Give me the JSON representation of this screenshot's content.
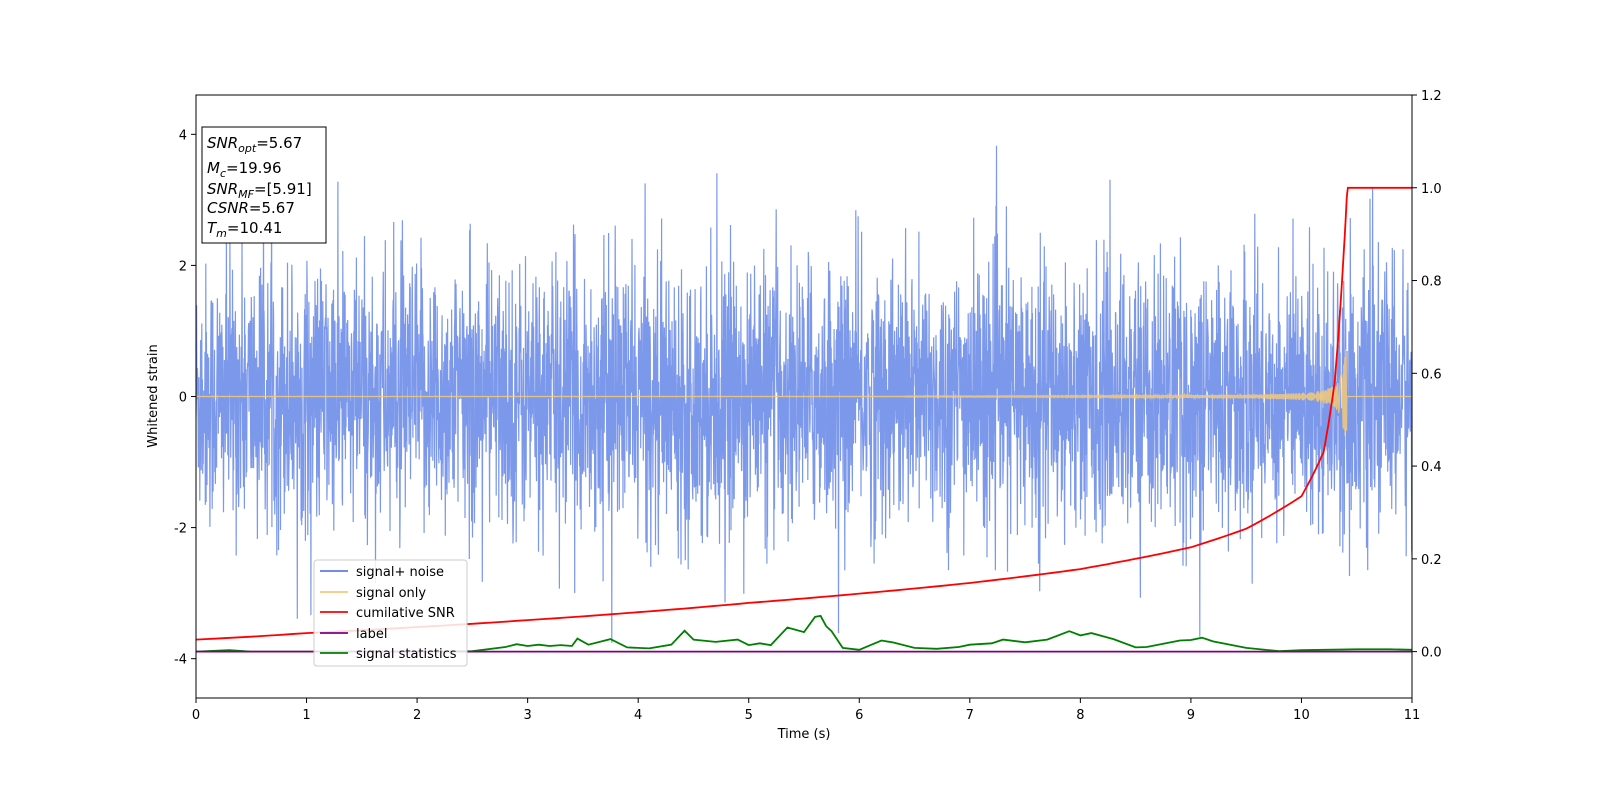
{
  "chart_data": {
    "type": "line",
    "xlabel": "Time (s)",
    "ylabel": "Whitened strain",
    "xlim": [
      0,
      11
    ],
    "ylim_left": [
      -4.6,
      4.6
    ],
    "ylim_right": [
      -0.1,
      1.2
    ],
    "x_ticks": [
      0,
      1,
      2,
      3,
      4,
      5,
      6,
      7,
      8,
      9,
      10,
      11
    ],
    "y_ticks_left": [
      -4,
      -2,
      0,
      2,
      4
    ],
    "y_ticks_right": [
      "0.0",
      "0.2",
      "0.4",
      "0.6",
      "0.8",
      "1.0",
      "1.2"
    ],
    "grid": false,
    "legend_position": "lower-left",
    "legend": [
      "signal+ noise",
      "signal only",
      "cumilative SNR",
      "label",
      "signal statistics"
    ],
    "colors": {
      "signal_noise": "#5b7ee5",
      "signal_only": "#f5c97a",
      "cumulative_snr": "#ff0000",
      "label": "#800080",
      "signal_statistics": "#008000"
    },
    "annotation": {
      "snr_opt": {
        "base": "SNR",
        "sub": "opt",
        "rest": "=5.67"
      },
      "mc": {
        "base": "M",
        "sub": "c",
        "rest": "=19.96"
      },
      "snr_mf": {
        "base": "SNR",
        "sub": "MF",
        "rest": "=[5.91]"
      },
      "csnr": {
        "base": "CSNR",
        "rest": "=5.67"
      },
      "tm": {
        "base": "T",
        "sub": "m",
        "rest": "=10.41"
      }
    },
    "series": [
      {
        "name": "signal+ noise",
        "axis": "left",
        "description_values": {
          "noise_std": 1.0,
          "envelope_max": 4.15,
          "envelope_min": -4.2
        }
      },
      {
        "name": "signal only",
        "axis": "left",
        "merger_time": 10.41,
        "peak_amplitude": 1.05
      },
      {
        "name": "cumilative SNR",
        "axis": "right",
        "x": [
          0,
          1,
          2,
          3,
          4,
          5,
          6,
          7,
          8,
          9,
          9.5,
          10,
          10.2,
          10.3,
          10.41,
          10.42,
          11
        ],
        "y": [
          0.026,
          0.04,
          0.053,
          0.068,
          0.085,
          0.105,
          0.125,
          0.148,
          0.178,
          0.225,
          0.265,
          0.335,
          0.43,
          0.58,
          0.98,
          1.0,
          1.0
        ]
      },
      {
        "name": "label",
        "axis": "right",
        "x": [
          0,
          11
        ],
        "y": [
          0,
          0
        ]
      },
      {
        "name": "signal statistics",
        "axis": "right",
        "x": [
          0,
          0.3,
          0.5,
          1,
          1.5,
          2,
          2.5,
          2.8,
          2.9,
          3.0,
          3.1,
          3.2,
          3.3,
          3.4,
          3.45,
          3.55,
          3.75,
          3.9,
          4.1,
          4.3,
          4.42,
          4.5,
          4.7,
          4.9,
          5.0,
          5.1,
          5.2,
          5.35,
          5.5,
          5.6,
          5.65,
          5.7,
          5.75,
          5.85,
          6.0,
          6.2,
          6.3,
          6.5,
          6.7,
          6.9,
          7.0,
          7.2,
          7.3,
          7.5,
          7.7,
          7.9,
          8.0,
          8.1,
          8.3,
          8.5,
          8.6,
          8.9,
          9.0,
          9.1,
          9.2,
          9.5,
          9.8,
          10.0,
          10.5,
          10.8,
          11
        ],
        "y": [
          0.0,
          0.003,
          0.0,
          0.0,
          0.0,
          0.0,
          0.001,
          0.01,
          0.016,
          0.012,
          0.015,
          0.012,
          0.014,
          0.012,
          0.028,
          0.015,
          0.027,
          0.009,
          0.007,
          0.015,
          0.045,
          0.026,
          0.021,
          0.026,
          0.014,
          0.018,
          0.014,
          0.052,
          0.042,
          0.075,
          0.077,
          0.055,
          0.044,
          0.008,
          0.004,
          0.024,
          0.02,
          0.008,
          0.006,
          0.01,
          0.015,
          0.018,
          0.026,
          0.02,
          0.026,
          0.044,
          0.035,
          0.04,
          0.027,
          0.009,
          0.01,
          0.024,
          0.025,
          0.03,
          0.022,
          0.008,
          0.001,
          0.003,
          0.005,
          0.005,
          0.004
        ]
      }
    ]
  }
}
